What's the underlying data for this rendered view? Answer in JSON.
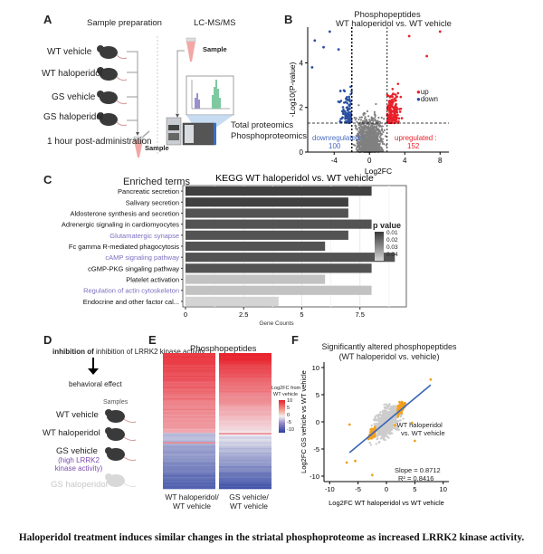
{
  "panels": {
    "A": {
      "label": "A",
      "sample_prep_title": "Sample preparation",
      "lcms_title": "LC-MS/MS",
      "groups": [
        "WT vehicle",
        "WT haloperidol",
        "GS vehicle",
        "GS haloperidol"
      ],
      "timepoint": "1 hour post-administration",
      "sample_label": "Sample",
      "sample_label_2": "Sample",
      "outputs": [
        "Total proteomics",
        "Phosphoproteomics"
      ],
      "colors": {
        "mouse": "#3a3a3a",
        "tube": "#f2a7a7",
        "peak1": "#9b8fd0",
        "peak2": "#7fc9a0"
      }
    },
    "B": {
      "label": "B",
      "title_line1": "Phosphopeptides",
      "title_line2": "WT haloperidol vs. WT vehicle",
      "legend": [
        {
          "label": "up",
          "color": "#e8202a"
        },
        {
          "label": "down",
          "color": "#2a4fa0"
        }
      ],
      "down_label": "downregulated :",
      "down_count": "100",
      "up_label": "upregulated :",
      "up_count": "152"
    },
    "C": {
      "label": "C",
      "enriched_label": "Enriched terms",
      "legend_title": "p value",
      "legend_ticks": [
        "0.01",
        "0.02",
        "0.03",
        "0.04"
      ]
    },
    "D": {
      "label": "D",
      "hypothesis": "inhibition of LRRK2 kinase activity",
      "effect": "behavioral effect",
      "samples_label": "Samples",
      "groups": [
        {
          "name": "WT vehicle",
          "note": ""
        },
        {
          "name": "WT haloperidol",
          "note": ""
        },
        {
          "name": "GS vehicle",
          "note": "(high LRRK2 kinase activity)"
        },
        {
          "name": "GS haloperidol",
          "note": ""
        }
      ],
      "note_color": "#7b4bb0"
    },
    "E": {
      "label": "E",
      "title": "Phosphopeptides",
      "col1_line1": "WT haloperidol/",
      "col1_line2": "WT vehicle",
      "col2_line1": "GS vehicle/",
      "col2_line2": "WT vehicle",
      "scale_title_1": "Log2FC from",
      "scale_title_2": "WT vehicle",
      "scale_ticks": [
        "10",
        "5",
        "0",
        "-5",
        "-10"
      ]
    },
    "F": {
      "label": "F",
      "title_line1": "Significantly altered phosphopeptides",
      "title_line2": "(WT haloperidol vs. vehicle)",
      "legend_line1": "WT haloperidol",
      "legend_line2": "vs. WT vehicle",
      "slope": "Slope = 0.8712",
      "r2": "R² = 0.8416"
    }
  },
  "caption": "Haloperidol treatment induces similar changes in the striatal phosphoproteome as increased LRRK2 kinase activity.",
  "chart_data": [
    {
      "id": "B",
      "type": "scatter",
      "title": "Phosphopeptides WT haloperidol vs. WT vehicle",
      "xlabel": "Log2FC",
      "ylabel": "-Log10(P-value)",
      "xlim": [
        -7,
        9
      ],
      "ylim": [
        0,
        5.6
      ],
      "xticks": [
        -4,
        0,
        4,
        8
      ],
      "yticks": [
        0,
        2,
        4
      ],
      "thresholds": {
        "log2fc": [
          -2,
          2
        ],
        "neg_log10_p": 1.3
      },
      "series": [
        {
          "name": "up",
          "count": 152,
          "color": "#e8202a"
        },
        {
          "name": "down",
          "count": 100,
          "color": "#2a4fa0"
        },
        {
          "name": "not significant",
          "color": "#808080"
        }
      ],
      "highlight_points": [
        {
          "x": 8.0,
          "y": 5.4,
          "series": "up"
        },
        {
          "x": 4.5,
          "y": 5.2,
          "series": "up"
        },
        {
          "x": 6.5,
          "y": 4.3,
          "series": "up"
        },
        {
          "x": -4.5,
          "y": 5.4,
          "series": "down"
        },
        {
          "x": -6.2,
          "y": 5.0,
          "series": "down"
        },
        {
          "x": -5.2,
          "y": 4.7,
          "series": "down"
        },
        {
          "x": -6.5,
          "y": 3.8,
          "series": "down"
        },
        {
          "x": -3.5,
          "y": 4.6,
          "series": "down"
        }
      ]
    },
    {
      "id": "C",
      "type": "bar",
      "orientation": "horizontal",
      "title": "KEGG  WT haloperidol vs. WT vehicle",
      "xlabel": "Gene Counts",
      "ylabel": "Enriched terms",
      "xlim": [
        0,
        9.3
      ],
      "xticks": [
        0,
        2.5,
        5,
        7.5
      ],
      "categories": [
        "Pancreatic secretion",
        "Salivary secretion",
        "Aldosterone synthesis and secretion",
        "Adrenergic signaling in cardiomyocytes",
        "Glutamatergic synapse",
        "Fc gamma R-mediated phagocytosis",
        "cAMP signaling pathway",
        "cGMP-PKG singaling pathway",
        "Platelet activation",
        "Regulation of actin cytoskeleton",
        "Endocrine and other factor cal..."
      ],
      "values": [
        8,
        7,
        7,
        8,
        7,
        6,
        9,
        8,
        6,
        8,
        4
      ],
      "p_values": [
        0.005,
        0.005,
        0.01,
        0.01,
        0.01,
        0.01,
        0.01,
        0.01,
        0.04,
        0.04,
        0.045
      ],
      "highlighted_categories": [
        "Glutamatergic synapse",
        "cAMP signaling pathway",
        "Regulation of actin cytoskeleton"
      ],
      "highlight_color": "#7a6fc0",
      "legend": {
        "title": "p value",
        "ticks": [
          0.01,
          0.02,
          0.03,
          0.04
        ],
        "placement": "right"
      }
    },
    {
      "id": "E",
      "type": "heatmap",
      "title": "Phosphopeptides",
      "columns": [
        "WT haloperidol/WT vehicle",
        "GS vehicle/WT vehicle"
      ],
      "color_scale": {
        "min": -10,
        "max": 10,
        "low": "#2a3f9e",
        "mid": "#f4f0f4",
        "high": "#e8202a"
      },
      "rows_up_fraction": 0.59,
      "rows_down_fraction": 0.41
    },
    {
      "id": "F",
      "type": "scatter",
      "title": "Significantly altered phosphopeptides (WT haloperidol vs. vehicle)",
      "xlabel": "Log2FC WT haloperidol vs WT vehicle",
      "ylabel": "Log2FC GS vehicle vs WT vehicle",
      "xlim": [
        -11,
        11
      ],
      "ylim": [
        -11,
        11
      ],
      "xticks": [
        -10,
        -5,
        0,
        5,
        10
      ],
      "yticks": [
        -10,
        -5,
        0,
        5,
        10
      ],
      "fit": {
        "slope": 0.8712,
        "r2": 0.8416,
        "x_range": [
          -6.5,
          7.8
        ]
      },
      "series": [
        {
          "name": "WT haloperidol vs. WT vehicle",
          "color": "#f0a020"
        },
        {
          "name": "all",
          "color": "#cccccc"
        }
      ],
      "highlight_points": [
        {
          "x": 7.8,
          "y": 7.8
        },
        {
          "x": -6.5,
          "y": -0.5
        },
        {
          "x": -7,
          "y": -7.5
        },
        {
          "x": -5.5,
          "y": -7.2
        },
        {
          "x": -2.5,
          "y": -9.8
        },
        {
          "x": 5,
          "y": -3.5
        },
        {
          "x": 4.5,
          "y": -0.2
        }
      ]
    }
  ]
}
